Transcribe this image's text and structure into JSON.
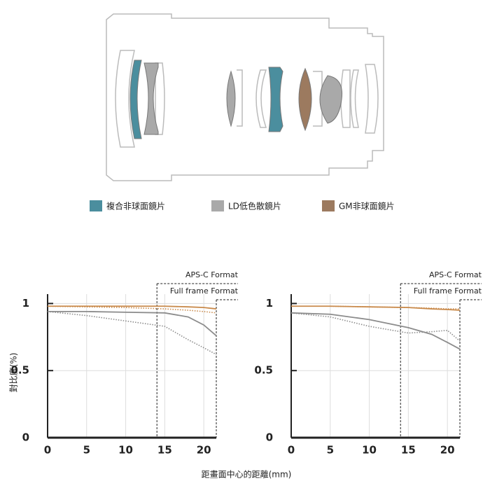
{
  "lens_legend": [
    {
      "label": "複合非球面鏡片",
      "color": "#4b8e9e"
    },
    {
      "label": "LD低色散鏡片",
      "color": "#a9a9a9"
    },
    {
      "label": "GM非球面鏡片",
      "color": "#9c7a5f"
    }
  ],
  "y_axis_label": "對比度(%)",
  "x_axis_label": "距畫面中心的距離(mm)",
  "chart_data": [
    {
      "type": "line",
      "regions": [
        {
          "label": "APS-C Format",
          "x": 14
        },
        {
          "label": "Full frame Format",
          "x": 21.6
        }
      ],
      "xlim": [
        0,
        21.6
      ],
      "xticks": [
        0,
        5,
        10,
        15,
        20
      ],
      "ylim": [
        0,
        1.07
      ],
      "yticks": [
        0,
        0.5,
        1
      ],
      "grid": true,
      "series": [
        {
          "color": "#c98a4b",
          "style": "solid",
          "x": [
            0,
            5,
            10,
            15,
            18,
            20,
            21.6
          ],
          "values": [
            0.98,
            0.98,
            0.98,
            0.98,
            0.975,
            0.97,
            0.96
          ]
        },
        {
          "color": "#c98a4b",
          "style": "dotted",
          "x": [
            0,
            5,
            10,
            15,
            18,
            20,
            21.6
          ],
          "values": [
            0.98,
            0.975,
            0.97,
            0.96,
            0.95,
            0.94,
            0.93
          ]
        },
        {
          "color": "#8c8c8c",
          "style": "solid",
          "x": [
            0,
            5,
            10,
            15,
            18,
            20,
            21.6
          ],
          "values": [
            0.94,
            0.94,
            0.935,
            0.93,
            0.9,
            0.84,
            0.76
          ]
        },
        {
          "color": "#8c8c8c",
          "style": "dotted",
          "x": [
            0,
            5,
            10,
            15,
            18,
            20,
            21.6
          ],
          "values": [
            0.94,
            0.91,
            0.87,
            0.83,
            0.73,
            0.67,
            0.62
          ]
        }
      ]
    },
    {
      "type": "line",
      "regions": [
        {
          "label": "APS-C Format",
          "x": 14
        },
        {
          "label": "Full frame Format",
          "x": 21.6
        }
      ],
      "xlim": [
        0,
        21.6
      ],
      "xticks": [
        0,
        5,
        10,
        15,
        20
      ],
      "ylim": [
        0,
        1.07
      ],
      "yticks": [
        0,
        0.5,
        1
      ],
      "grid": true,
      "series": [
        {
          "color": "#c98a4b",
          "style": "solid",
          "x": [
            0,
            5,
            10,
            15,
            18,
            20,
            21.6
          ],
          "values": [
            0.98,
            0.98,
            0.975,
            0.97,
            0.96,
            0.955,
            0.95
          ]
        },
        {
          "color": "#c98a4b",
          "style": "dotted",
          "x": [
            0,
            5,
            10,
            15,
            18,
            20,
            21.6
          ],
          "values": [
            0.98,
            0.98,
            0.975,
            0.97,
            0.965,
            0.96,
            0.96
          ]
        },
        {
          "color": "#8c8c8c",
          "style": "solid",
          "x": [
            0,
            5,
            10,
            15,
            18,
            20,
            21.6
          ],
          "values": [
            0.93,
            0.92,
            0.88,
            0.82,
            0.77,
            0.71,
            0.66
          ]
        },
        {
          "color": "#8c8c8c",
          "style": "dotted",
          "x": [
            0,
            5,
            10,
            15,
            18,
            20,
            21.6
          ],
          "values": [
            0.93,
            0.9,
            0.83,
            0.78,
            0.79,
            0.8,
            0.72
          ]
        }
      ]
    }
  ]
}
